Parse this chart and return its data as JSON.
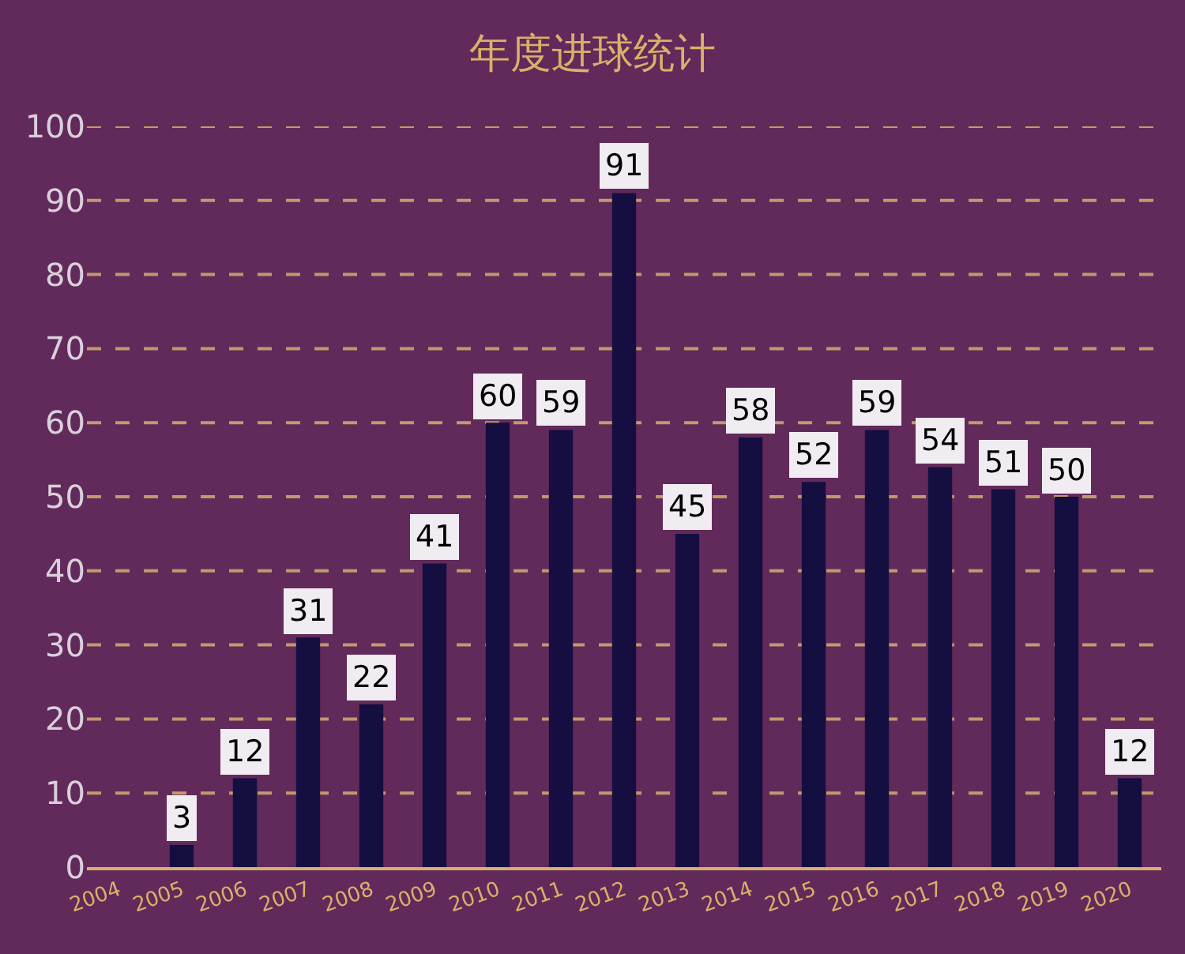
{
  "chart_data": {
    "type": "bar",
    "title": "年度进球统计",
    "categories": [
      "2004",
      "2005",
      "2006",
      "2007",
      "2008",
      "2009",
      "2010",
      "2011",
      "2012",
      "2013",
      "2014",
      "2015",
      "2016",
      "2017",
      "2018",
      "2019",
      "2020"
    ],
    "values": [
      null,
      3,
      12,
      31,
      22,
      41,
      60,
      59,
      91,
      45,
      58,
      52,
      59,
      54,
      51,
      50,
      12
    ],
    "color": "#140f40",
    "ylim": [
      0,
      100
    ],
    "yticks": [
      0,
      10,
      20,
      30,
      40,
      50,
      60,
      70,
      80,
      90,
      100
    ],
    "grid": "y",
    "data_labels": true
  }
}
